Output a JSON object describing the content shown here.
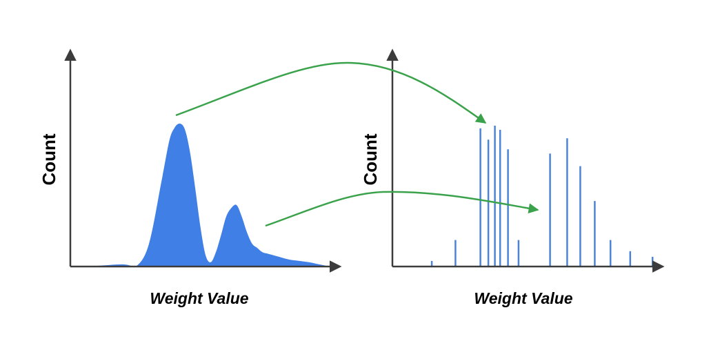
{
  "colors": {
    "axis": "#3c3c3c",
    "distribution_fill": "#3f7fe6",
    "quantized_bar": "#4a83d8",
    "arrow": "#3aa24a"
  },
  "left_panel": {
    "ylabel": "Count",
    "xlabel": "Weight Value"
  },
  "right_panel": {
    "ylabel": "Count",
    "xlabel": "Weight Value"
  },
  "chart_data": [
    {
      "type": "area",
      "panel": "left",
      "description_of_shape": "bimodal continuous distribution",
      "xlabel": "Weight Value",
      "ylabel": "Count",
      "ylim": [
        0,
        100
      ],
      "x": [
        0,
        10,
        20,
        25,
        30,
        35,
        38,
        40,
        42,
        44,
        46,
        48,
        50,
        52,
        54,
        56,
        58,
        60,
        62,
        64,
        66,
        68,
        70,
        72,
        74,
        76,
        78,
        80,
        84,
        88,
        92,
        96,
        100
      ],
      "values": [
        0,
        0.5,
        1.5,
        0,
        15,
        60,
        88,
        97,
        100,
        96,
        80,
        55,
        28,
        8,
        3,
        10,
        22,
        35,
        41,
        43,
        35,
        24,
        16,
        13,
        10,
        9,
        8,
        7,
        5,
        4,
        3,
        1.5,
        0
      ]
    },
    {
      "type": "bar",
      "panel": "right",
      "description_of_shape": "discrete quantized distribution",
      "xlabel": "Weight Value",
      "ylabel": "Count",
      "ylim": [
        0,
        100
      ],
      "x": [
        15,
        24,
        33.5,
        36.5,
        39,
        41,
        44,
        48,
        60,
        66.5,
        71.5,
        77,
        83,
        90.5,
        99
      ],
      "values": [
        4,
        19,
        99,
        91,
        101,
        98,
        84,
        19,
        81,
        92,
        72,
        47,
        19,
        11,
        7
      ]
    }
  ]
}
